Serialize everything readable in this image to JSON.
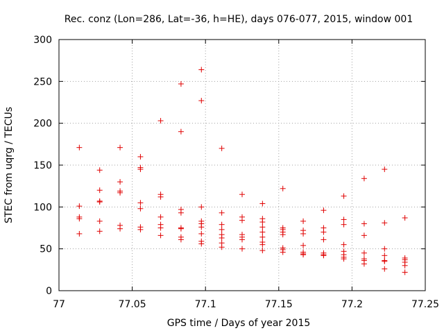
{
  "chart_data": {
    "type": "scatter",
    "title": "Rec. conz (Lon=286, Lat=-36, h=HE), days 076-077, 2015, window 001",
    "xlabel": "GPS time / Days of year 2015",
    "ylabel": "STEC from uqrg / TECUs",
    "xlim": [
      77,
      77.25
    ],
    "ylim": [
      0,
      300
    ],
    "xticks": [
      77,
      77.05,
      77.1,
      77.15,
      77.2,
      77.25
    ],
    "xtick_labels": [
      "77",
      "77.05",
      "77.1",
      "77.15",
      "77.2",
      "77.25"
    ],
    "yticks": [
      0,
      50,
      100,
      150,
      200,
      250,
      300
    ],
    "ytick_labels": [
      "0",
      "50",
      "100",
      "150",
      "200",
      "250",
      "300"
    ],
    "grid": true,
    "marker": "plus",
    "color": "#e00000",
    "series": [
      {
        "name": "STEC",
        "points": [
          [
            77.0139,
            171
          ],
          [
            77.0139,
            101
          ],
          [
            77.0139,
            88
          ],
          [
            77.0139,
            86
          ],
          [
            77.0139,
            68
          ],
          [
            77.0278,
            144
          ],
          [
            77.0278,
            120
          ],
          [
            77.0278,
            107
          ],
          [
            77.0278,
            106
          ],
          [
            77.0278,
            83
          ],
          [
            77.0278,
            71
          ],
          [
            77.0417,
            171
          ],
          [
            77.0417,
            130
          ],
          [
            77.0417,
            119
          ],
          [
            77.0417,
            117
          ],
          [
            77.0417,
            78
          ],
          [
            77.0417,
            74
          ],
          [
            77.0556,
            160
          ],
          [
            77.0556,
            147
          ],
          [
            77.0556,
            145
          ],
          [
            77.0556,
            105
          ],
          [
            77.0556,
            98
          ],
          [
            77.0556,
            76
          ],
          [
            77.0556,
            73
          ],
          [
            77.0694,
            203
          ],
          [
            77.0694,
            115
          ],
          [
            77.0694,
            112
          ],
          [
            77.0694,
            88
          ],
          [
            77.0694,
            79
          ],
          [
            77.0694,
            75
          ],
          [
            77.0694,
            66
          ],
          [
            77.0833,
            247
          ],
          [
            77.0833,
            190
          ],
          [
            77.0833,
            97
          ],
          [
            77.0833,
            93
          ],
          [
            77.0833,
            75
          ],
          [
            77.0833,
            74
          ],
          [
            77.0833,
            64
          ],
          [
            77.0833,
            61
          ],
          [
            77.0972,
            264
          ],
          [
            77.0972,
            227
          ],
          [
            77.0972,
            100
          ],
          [
            77.0972,
            83
          ],
          [
            77.0972,
            80
          ],
          [
            77.0972,
            76
          ],
          [
            77.0972,
            68
          ],
          [
            77.0972,
            59
          ],
          [
            77.0972,
            56
          ],
          [
            77.1111,
            170
          ],
          [
            77.1111,
            93
          ],
          [
            77.1111,
            79
          ],
          [
            77.1111,
            73
          ],
          [
            77.1111,
            67
          ],
          [
            77.1111,
            63
          ],
          [
            77.1111,
            57
          ],
          [
            77.1111,
            52
          ],
          [
            77.125,
            115
          ],
          [
            77.125,
            88
          ],
          [
            77.125,
            84
          ],
          [
            77.125,
            67
          ],
          [
            77.125,
            64
          ],
          [
            77.125,
            61
          ],
          [
            77.125,
            50
          ],
          [
            77.1389,
            104
          ],
          [
            77.1389,
            86
          ],
          [
            77.1389,
            82
          ],
          [
            77.1389,
            76
          ],
          [
            77.1389,
            70
          ],
          [
            77.1389,
            64
          ],
          [
            77.1389,
            58
          ],
          [
            77.1389,
            55
          ],
          [
            77.1389,
            48
          ],
          [
            77.1528,
            122
          ],
          [
            77.1528,
            75
          ],
          [
            77.1528,
            73
          ],
          [
            77.1528,
            70
          ],
          [
            77.1528,
            67
          ],
          [
            77.1528,
            51
          ],
          [
            77.1528,
            49
          ],
          [
            77.1528,
            46
          ],
          [
            77.1667,
            83
          ],
          [
            77.1667,
            72
          ],
          [
            77.1667,
            68
          ],
          [
            77.1667,
            54
          ],
          [
            77.1667,
            46
          ],
          [
            77.1667,
            44
          ],
          [
            77.1667,
            43
          ],
          [
            77.1806,
            96
          ],
          [
            77.1806,
            75
          ],
          [
            77.1806,
            70
          ],
          [
            77.1806,
            61
          ],
          [
            77.1806,
            45
          ],
          [
            77.1806,
            43
          ],
          [
            77.1806,
            42
          ],
          [
            77.1944,
            113
          ],
          [
            77.1944,
            85
          ],
          [
            77.1944,
            79
          ],
          [
            77.1944,
            55
          ],
          [
            77.1944,
            47
          ],
          [
            77.1944,
            43
          ],
          [
            77.1944,
            40
          ],
          [
            77.1944,
            38
          ],
          [
            77.2083,
            134
          ],
          [
            77.2083,
            80
          ],
          [
            77.2083,
            66
          ],
          [
            77.2083,
            45
          ],
          [
            77.2083,
            38
          ],
          [
            77.2083,
            36
          ],
          [
            77.2083,
            32
          ],
          [
            77.2222,
            145
          ],
          [
            77.2222,
            81
          ],
          [
            77.2222,
            50
          ],
          [
            77.2222,
            42
          ],
          [
            77.2222,
            36
          ],
          [
            77.2222,
            35
          ],
          [
            77.2222,
            26
          ],
          [
            77.2361,
            87
          ],
          [
            77.2361,
            39
          ],
          [
            77.2361,
            37
          ],
          [
            77.2361,
            34
          ],
          [
            77.2361,
            30
          ],
          [
            77.2361,
            22
          ]
        ]
      }
    ]
  }
}
